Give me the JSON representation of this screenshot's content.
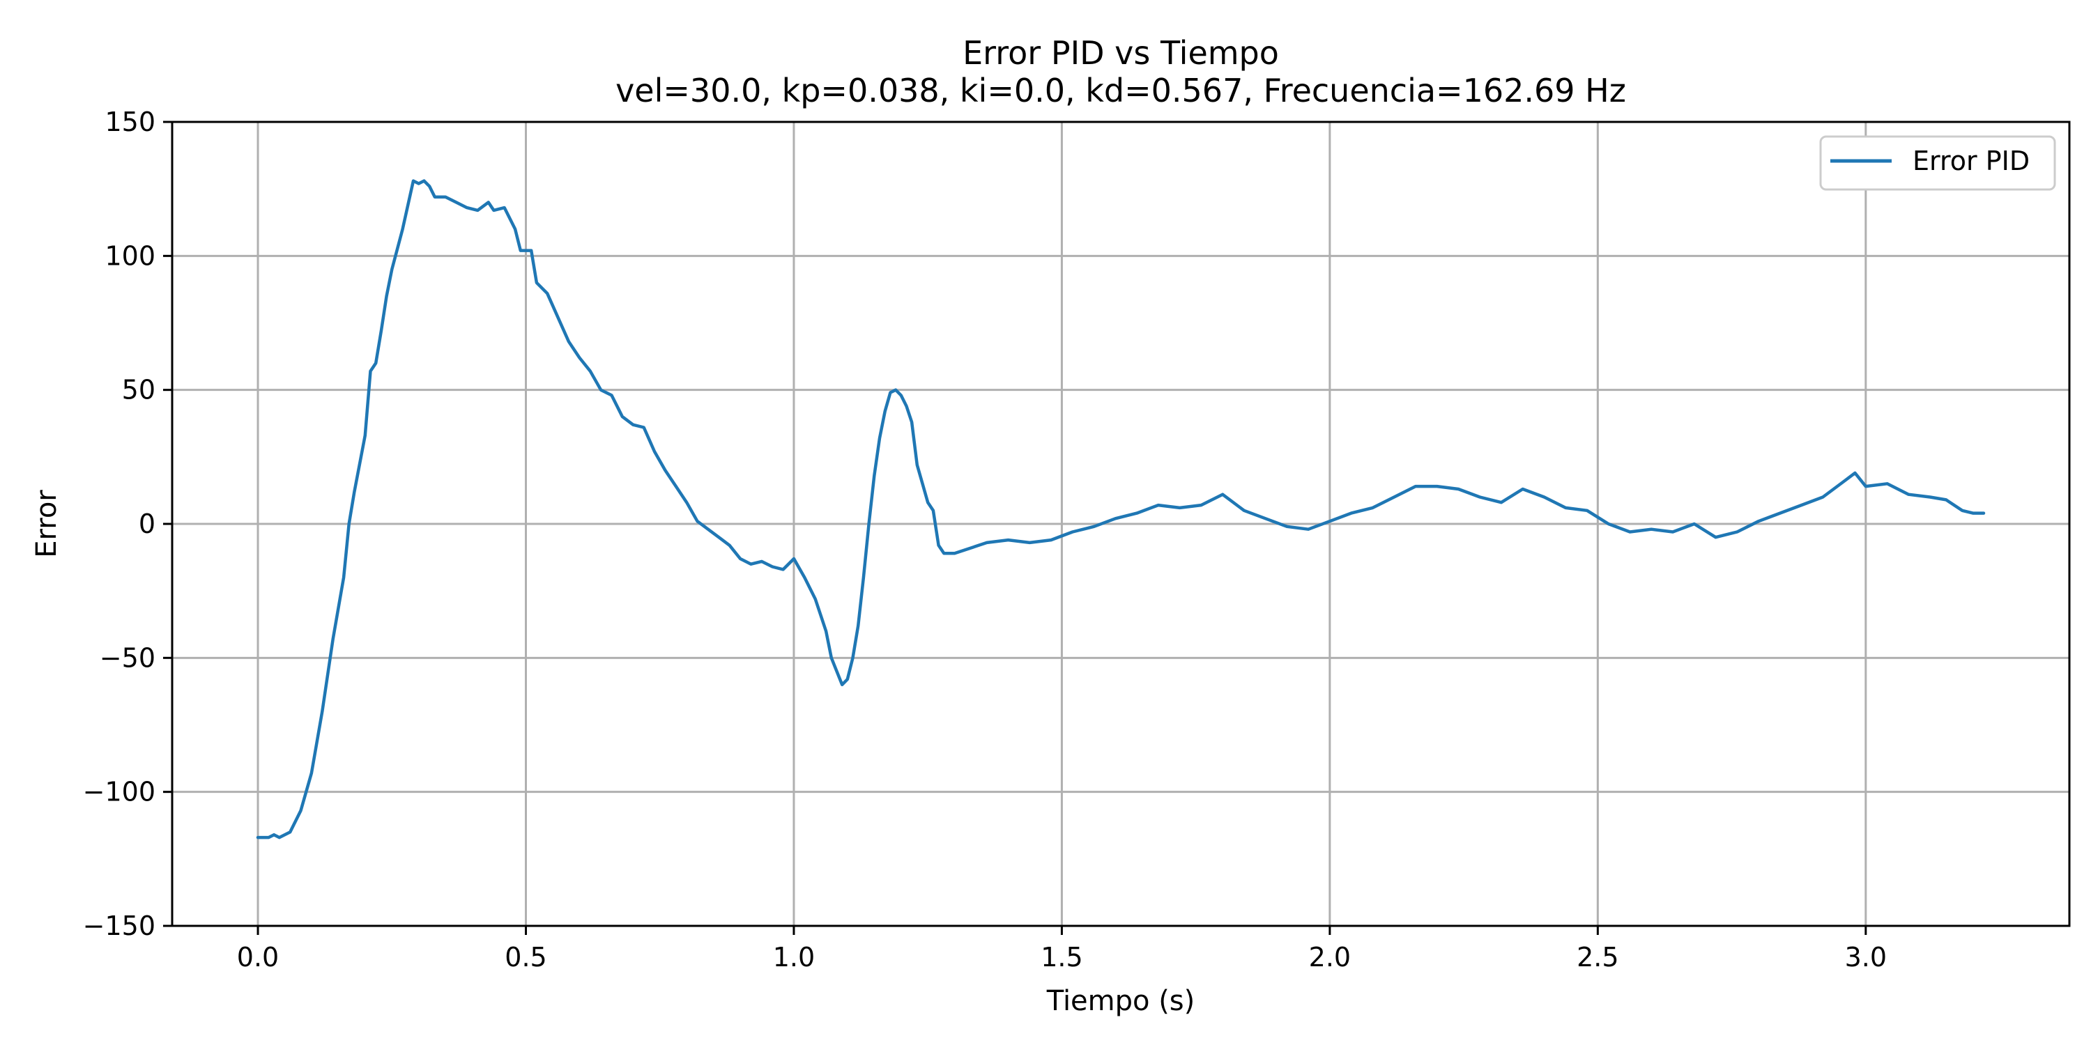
{
  "chart_data": {
    "type": "line",
    "title": "Error PID vs Tiempo",
    "subtitle": "vel=30.0, kp=0.038, ki=0.0, kd=0.567, Frecuencia=162.69 Hz",
    "xlabel": "Tiempo (s)",
    "ylabel": "Error",
    "xlim": [
      -0.16,
      3.38
    ],
    "ylim": [
      -150,
      150
    ],
    "x_ticks": [
      0.0,
      0.5,
      1.0,
      1.5,
      2.0,
      2.5,
      3.0
    ],
    "x_tick_labels": [
      "0.0",
      "0.5",
      "1.0",
      "1.5",
      "2.0",
      "2.5",
      "3.0"
    ],
    "y_ticks": [
      -150,
      -100,
      -50,
      0,
      50,
      100,
      150
    ],
    "y_tick_labels": [
      "−150",
      "−100",
      "−50",
      "0",
      "50",
      "100",
      "150"
    ],
    "grid": true,
    "legend_position": "top-right",
    "series": [
      {
        "name": "Error PID",
        "color": "#1f77b4",
        "points": [
          [
            0.0,
            -117
          ],
          [
            0.02,
            -117
          ],
          [
            0.03,
            -116
          ],
          [
            0.04,
            -117
          ],
          [
            0.06,
            -115
          ],
          [
            0.08,
            -107
          ],
          [
            0.1,
            -93
          ],
          [
            0.12,
            -70
          ],
          [
            0.14,
            -43
          ],
          [
            0.16,
            -20
          ],
          [
            0.17,
            0
          ],
          [
            0.18,
            12
          ],
          [
            0.2,
            33
          ],
          [
            0.21,
            57
          ],
          [
            0.22,
            60
          ],
          [
            0.23,
            72
          ],
          [
            0.24,
            85
          ],
          [
            0.25,
            95
          ],
          [
            0.27,
            110
          ],
          [
            0.29,
            128
          ],
          [
            0.3,
            127
          ],
          [
            0.31,
            128
          ],
          [
            0.32,
            126
          ],
          [
            0.33,
            122
          ],
          [
            0.35,
            122
          ],
          [
            0.37,
            120
          ],
          [
            0.39,
            118
          ],
          [
            0.41,
            117
          ],
          [
            0.43,
            120
          ],
          [
            0.44,
            117
          ],
          [
            0.46,
            118
          ],
          [
            0.48,
            110
          ],
          [
            0.49,
            102
          ],
          [
            0.51,
            102
          ],
          [
            0.52,
            90
          ],
          [
            0.54,
            86
          ],
          [
            0.56,
            77
          ],
          [
            0.58,
            68
          ],
          [
            0.6,
            62
          ],
          [
            0.62,
            57
          ],
          [
            0.64,
            50
          ],
          [
            0.66,
            48
          ],
          [
            0.68,
            40
          ],
          [
            0.7,
            37
          ],
          [
            0.72,
            36
          ],
          [
            0.74,
            27
          ],
          [
            0.76,
            20
          ],
          [
            0.78,
            14
          ],
          [
            0.8,
            8
          ],
          [
            0.82,
            1
          ],
          [
            0.84,
            -2
          ],
          [
            0.86,
            -5
          ],
          [
            0.88,
            -8
          ],
          [
            0.9,
            -13
          ],
          [
            0.92,
            -15
          ],
          [
            0.94,
            -14
          ],
          [
            0.96,
            -16
          ],
          [
            0.98,
            -17
          ],
          [
            1.0,
            -13
          ],
          [
            1.02,
            -20
          ],
          [
            1.04,
            -28
          ],
          [
            1.06,
            -40
          ],
          [
            1.07,
            -50
          ],
          [
            1.08,
            -55
          ],
          [
            1.09,
            -60
          ],
          [
            1.1,
            -58
          ],
          [
            1.11,
            -50
          ],
          [
            1.12,
            -38
          ],
          [
            1.13,
            -20
          ],
          [
            1.14,
            0
          ],
          [
            1.15,
            18
          ],
          [
            1.16,
            32
          ],
          [
            1.17,
            42
          ],
          [
            1.18,
            49
          ],
          [
            1.19,
            50
          ],
          [
            1.2,
            48
          ],
          [
            1.21,
            44
          ],
          [
            1.22,
            38
          ],
          [
            1.23,
            22
          ],
          [
            1.24,
            15
          ],
          [
            1.25,
            8
          ],
          [
            1.26,
            5
          ],
          [
            1.27,
            -8
          ],
          [
            1.28,
            -11
          ],
          [
            1.3,
            -11
          ],
          [
            1.33,
            -9
          ],
          [
            1.36,
            -7
          ],
          [
            1.4,
            -6
          ],
          [
            1.44,
            -7
          ],
          [
            1.48,
            -6
          ],
          [
            1.52,
            -3
          ],
          [
            1.56,
            -1
          ],
          [
            1.6,
            2
          ],
          [
            1.64,
            4
          ],
          [
            1.68,
            7
          ],
          [
            1.72,
            6
          ],
          [
            1.76,
            7
          ],
          [
            1.8,
            11
          ],
          [
            1.84,
            5
          ],
          [
            1.88,
            2
          ],
          [
            1.92,
            -1
          ],
          [
            1.96,
            -2
          ],
          [
            2.0,
            1
          ],
          [
            2.04,
            4
          ],
          [
            2.08,
            6
          ],
          [
            2.12,
            10
          ],
          [
            2.16,
            14
          ],
          [
            2.2,
            14
          ],
          [
            2.24,
            13
          ],
          [
            2.28,
            10
          ],
          [
            2.32,
            8
          ],
          [
            2.36,
            13
          ],
          [
            2.4,
            10
          ],
          [
            2.44,
            6
          ],
          [
            2.48,
            5
          ],
          [
            2.52,
            0
          ],
          [
            2.56,
            -3
          ],
          [
            2.6,
            -2
          ],
          [
            2.64,
            -3
          ],
          [
            2.68,
            0
          ],
          [
            2.72,
            -5
          ],
          [
            2.76,
            -3
          ],
          [
            2.8,
            1
          ],
          [
            2.84,
            4
          ],
          [
            2.88,
            7
          ],
          [
            2.92,
            10
          ],
          [
            2.96,
            16
          ],
          [
            2.98,
            19
          ],
          [
            3.0,
            14
          ],
          [
            3.04,
            15
          ],
          [
            3.08,
            11
          ],
          [
            3.12,
            10
          ],
          [
            3.15,
            9
          ],
          [
            3.18,
            5
          ],
          [
            3.2,
            4
          ],
          [
            3.22,
            4
          ]
        ]
      }
    ]
  }
}
